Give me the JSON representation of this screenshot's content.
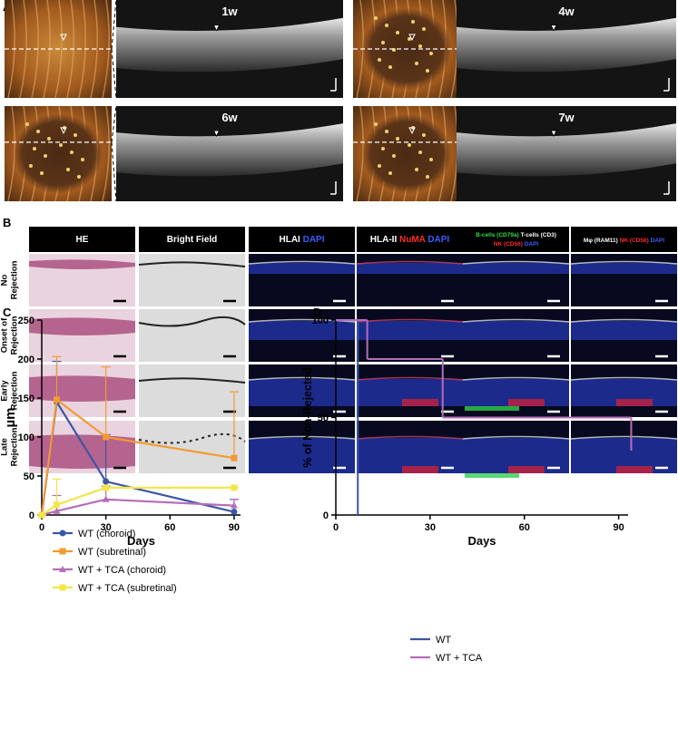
{
  "panel_a": {
    "label": "A",
    "timepoints": [
      "1w",
      "4w",
      "6w",
      "7w"
    ]
  },
  "panel_b": {
    "label": "B",
    "columns": [
      [
        [
          {
            "text": "HE",
            "color": "#ffffff"
          }
        ]
      ],
      [
        [
          {
            "text": "Bright Field",
            "color": "#ffffff"
          }
        ]
      ],
      [
        [
          {
            "text": "HLAI ",
            "color": "#ffffff"
          },
          {
            "text": "DAPI",
            "color": "#3b5bff"
          }
        ]
      ],
      [
        [
          {
            "text": "HLA-II ",
            "color": "#ffffff"
          },
          {
            "text": "NuMA ",
            "color": "#ff2a2a"
          },
          {
            "text": "DAPI",
            "color": "#3b5bff"
          }
        ]
      ],
      [
        [
          {
            "text": "B-cells (CD79a) ",
            "color": "#33dd44"
          },
          {
            "text": "T-cells (CD3)",
            "color": "#ffffff"
          }
        ],
        [
          {
            "text": "NK (CD56) ",
            "color": "#ff2a2a"
          },
          {
            "text": "DAPI",
            "color": "#3b5bff"
          }
        ]
      ],
      [
        [
          {
            "text": "Mφ (RAM11) ",
            "color": "#ffffff"
          },
          {
            "text": "NK (CD56) ",
            "color": "#ff2a2a"
          },
          {
            "text": "DAPI",
            "color": "#3b5bff"
          }
        ]
      ]
    ],
    "rows": [
      [
        "No",
        "Rejection"
      ],
      [
        "Onset of",
        "Rejection"
      ],
      [
        "Early",
        "Rejection"
      ],
      [
        "Late",
        "Rejection"
      ]
    ]
  },
  "chart_data": [
    {
      "type": "line",
      "label": "C",
      "xlabel": "Days",
      "ylabel": "µm",
      "x": [
        0,
        7,
        30,
        90
      ],
      "xlim": [
        0,
        93
      ],
      "xticks": [
        0,
        30,
        60,
        90
      ],
      "ylim": [
        0,
        250
      ],
      "yticks": [
        0,
        50,
        100,
        150,
        200,
        250
      ],
      "series": [
        {
          "name": "WT  (choroid)",
          "color": "#3b56a6",
          "marker": "circle",
          "values": [
            0,
            145,
            43,
            4
          ],
          "errors": [
            0,
            52,
            60,
            16
          ]
        },
        {
          "name": "WT  (subretinal)",
          "color": "#f39a33",
          "marker": "square",
          "values": [
            0,
            148,
            100,
            73
          ],
          "errors": [
            0,
            55,
            90,
            85
          ]
        },
        {
          "name": "WT  + TCA (choroid)",
          "color": "#b56db8",
          "marker": "triangle",
          "values": [
            0,
            5,
            20,
            12
          ],
          "errors": [
            0,
            20,
            17,
            8
          ]
        },
        {
          "name": "WT  + TCA (subretinal)",
          "color": "#f2e64a",
          "marker": "square",
          "values": [
            0,
            13,
            35,
            35
          ],
          "errors": [
            0,
            33,
            0,
            0
          ]
        }
      ]
    },
    {
      "type": "step",
      "label": "D",
      "xlabel": "Days",
      "ylabel": "% of Non-Rejected",
      "xlim": [
        0,
        93
      ],
      "xticks": [
        0,
        30,
        60,
        90
      ],
      "ylim": [
        0,
        100
      ],
      "yticks": [
        0,
        50,
        100
      ],
      "series": [
        {
          "name": "WT",
          "color": "#3b56a6",
          "x": [
            0,
            7
          ],
          "values": [
            100,
            0
          ]
        },
        {
          "name": "WT + TCA",
          "color": "#b56db8",
          "x": [
            0,
            10,
            34,
            94
          ],
          "values": [
            100,
            80,
            50,
            33
          ]
        }
      ]
    }
  ]
}
